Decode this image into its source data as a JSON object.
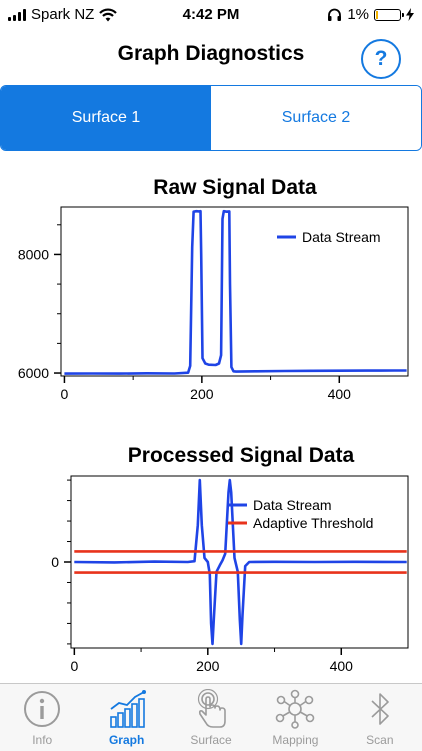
{
  "status_bar": {
    "carrier": "Spark NZ",
    "time": "4:42 PM",
    "battery_percent": "1%",
    "battery_level": 0.01,
    "icons": [
      "signal-bars-icon",
      "wifi-icon",
      "headphones-icon",
      "battery-icon",
      "charging-bolt-icon"
    ]
  },
  "header": {
    "title": "Graph Diagnostics",
    "help_label": "?"
  },
  "segments": [
    {
      "label": "Surface 1",
      "selected": true
    },
    {
      "label": "Surface 2",
      "selected": false
    }
  ],
  "colors": {
    "accent": "#1479e0",
    "stream": "#1f44e6",
    "threshold": "#e8331c",
    "inactive": "#9b9b9b"
  },
  "chart_data": [
    {
      "type": "line",
      "title": "Raw Signal Data",
      "xlim": [
        -5,
        500
      ],
      "ylim": [
        5950,
        8800
      ],
      "x_ticks": [
        0,
        200,
        400
      ],
      "y_ticks": [
        6000,
        8000
      ],
      "legend": "top-right",
      "series": [
        {
          "name": "Data Stream",
          "color": "#1f44e6",
          "points": [
            [
              0,
              5990
            ],
            [
              40,
              5993
            ],
            [
              80,
              5990
            ],
            [
              120,
              5995
            ],
            [
              160,
              5992
            ],
            [
              180,
              6005
            ],
            [
              183,
              6120
            ],
            [
              186,
              8120
            ],
            [
              188,
              8720
            ],
            [
              192,
              8730
            ],
            [
              196,
              8725
            ],
            [
              198,
              8730
            ],
            [
              199,
              8000
            ],
            [
              201,
              6250
            ],
            [
              205,
              6160
            ],
            [
              210,
              6140
            ],
            [
              220,
              6135
            ],
            [
              225,
              6160
            ],
            [
              228,
              6300
            ],
            [
              230,
              8600
            ],
            [
              232,
              8730
            ],
            [
              236,
              8720
            ],
            [
              240,
              8725
            ],
            [
              241,
              7500
            ],
            [
              243,
              6100
            ],
            [
              246,
              6030
            ],
            [
              250,
              6025
            ],
            [
              280,
              6030
            ],
            [
              320,
              6035
            ],
            [
              360,
              6038
            ],
            [
              400,
              6040
            ],
            [
              440,
              6041
            ],
            [
              480,
              6043
            ],
            [
              498,
              6042
            ]
          ]
        }
      ]
    },
    {
      "type": "line",
      "title": "Processed Signal Data",
      "xlim": [
        -5,
        500
      ],
      "ylim": [
        -1.05,
        1.05
      ],
      "x_ticks": [
        0,
        200,
        400
      ],
      "y_ticks": [
        0
      ],
      "legend": "top-right",
      "series": [
        {
          "name": "Data Stream",
          "color": "#1f44e6",
          "points": [
            [
              0,
              0
            ],
            [
              60,
              -0.005
            ],
            [
              120,
              0.005
            ],
            [
              170,
              0
            ],
            [
              180,
              0.01
            ],
            [
              185,
              0.45
            ],
            [
              188,
              1.0
            ],
            [
              191,
              0.45
            ],
            [
              195,
              0.05
            ],
            [
              200,
              0
            ],
            [
              203,
              -0.15
            ],
            [
              205,
              -0.75
            ],
            [
              207,
              -1.0
            ],
            [
              209,
              -0.7
            ],
            [
              213,
              -0.12
            ],
            [
              218,
              -0.04
            ],
            [
              222,
              0.02
            ],
            [
              226,
              0.1
            ],
            [
              231,
              0.85
            ],
            [
              233,
              1.0
            ],
            [
              235,
              0.85
            ],
            [
              240,
              0.05
            ],
            [
              245,
              -0.12
            ],
            [
              248,
              -0.7
            ],
            [
              250,
              -1.0
            ],
            [
              252,
              -0.65
            ],
            [
              256,
              -0.05
            ],
            [
              262,
              0
            ],
            [
              300,
              0.003
            ],
            [
              360,
              0
            ],
            [
              420,
              0.002
            ],
            [
              498,
              0
            ]
          ]
        },
        {
          "name": "Adaptive Threshold",
          "color": "#e8331c",
          "points": [
            [
              0,
              0.13
            ],
            [
              498,
              0.13
            ]
          ]
        },
        {
          "name": "Adaptive Threshold",
          "color": "#e8331c",
          "points": [
            [
              0,
              -0.13
            ],
            [
              498,
              -0.13
            ]
          ]
        }
      ]
    }
  ],
  "tabs": [
    {
      "label": "Info",
      "icon": "info-icon",
      "active": false
    },
    {
      "label": "Graph",
      "icon": "bar-graph-icon",
      "active": true
    },
    {
      "label": "Surface",
      "icon": "touch-hand-icon",
      "active": false
    },
    {
      "label": "Mapping",
      "icon": "network-nodes-icon",
      "active": false
    },
    {
      "label": "Scan",
      "icon": "bluetooth-icon",
      "active": false
    }
  ]
}
